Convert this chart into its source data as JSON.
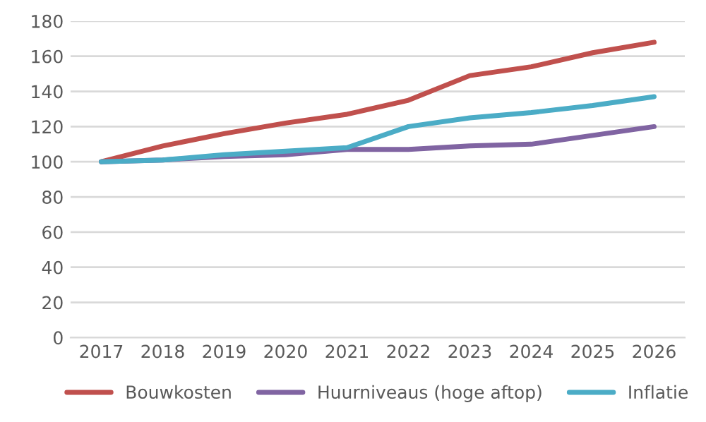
{
  "chart_data": {
    "type": "line",
    "categories": [
      "2017",
      "2018",
      "2019",
      "2020",
      "2021",
      "2022",
      "2023",
      "2024",
      "2025",
      "2026"
    ],
    "series": [
      {
        "name": "Bouwkosten",
        "color": "#c0504d",
        "values": [
          100,
          109,
          116,
          122,
          127,
          135,
          149,
          154,
          162,
          168
        ]
      },
      {
        "name": "Huurniveaus (hoge aftop)",
        "color": "#8064a2",
        "values": [
          100,
          101,
          103,
          104,
          107,
          107,
          109,
          110,
          115,
          120
        ]
      },
      {
        "name": "Inflatie",
        "color": "#4bacc6",
        "values": [
          100,
          101,
          104,
          106,
          108,
          120,
          125,
          128,
          132,
          137
        ]
      }
    ],
    "ylim": [
      0,
      180
    ],
    "yticks": [
      0,
      20,
      40,
      60,
      80,
      100,
      120,
      140,
      160,
      180
    ],
    "grid": "y",
    "legend": "bottom",
    "marker": "none",
    "line_style": "solid"
  }
}
